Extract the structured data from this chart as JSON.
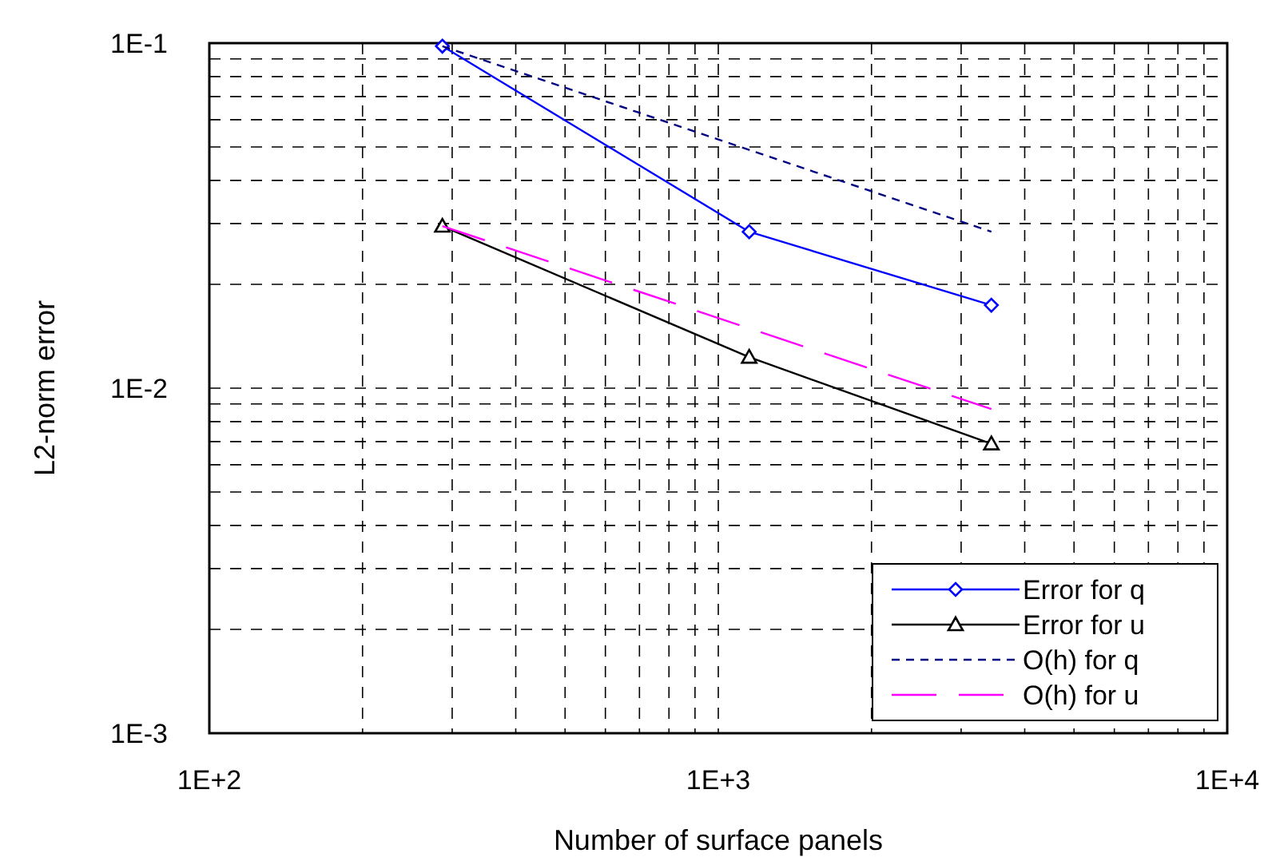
{
  "chart_data": {
    "type": "line",
    "xlabel": "Number of surface panels",
    "ylabel": "L2-norm error",
    "log": "xy",
    "grid": true,
    "legend": "bottom right",
    "xlim": [
      100,
      10000
    ],
    "ylim": [
      0.001,
      0.1
    ],
    "xticks": [
      {
        "value": 100,
        "label": "1E+2"
      },
      {
        "value": 200,
        "label": null
      },
      {
        "value": 300,
        "label": null
      },
      {
        "value": 400,
        "label": null
      },
      {
        "value": 500,
        "label": null
      },
      {
        "value": 600,
        "label": null
      },
      {
        "value": 700,
        "label": null
      },
      {
        "value": 800,
        "label": null
      },
      {
        "value": 900,
        "label": null
      },
      {
        "value": 1000,
        "label": "1E+3"
      },
      {
        "value": 2000,
        "label": null
      },
      {
        "value": 3000,
        "label": null
      },
      {
        "value": 4000,
        "label": null
      },
      {
        "value": 5000,
        "label": null
      },
      {
        "value": 6000,
        "label": null
      },
      {
        "value": 7000,
        "label": null
      },
      {
        "value": 8000,
        "label": null
      },
      {
        "value": 9000,
        "label": null
      },
      {
        "value": 10000,
        "label": "1E+4"
      }
    ],
    "yticks": [
      {
        "value": 0.001,
        "label": "1E-3"
      },
      {
        "value": 0.002,
        "label": null
      },
      {
        "value": 0.003,
        "label": null
      },
      {
        "value": 0.004,
        "label": null
      },
      {
        "value": 0.005,
        "label": null
      },
      {
        "value": 0.006,
        "label": null
      },
      {
        "value": 0.007,
        "label": null
      },
      {
        "value": 0.008,
        "label": null
      },
      {
        "value": 0.009,
        "label": null
      },
      {
        "value": 0.01,
        "label": "1E-2"
      },
      {
        "value": 0.02,
        "label": null
      },
      {
        "value": 0.03,
        "label": null
      },
      {
        "value": 0.04,
        "label": null
      },
      {
        "value": 0.05,
        "label": null
      },
      {
        "value": 0.06,
        "label": null
      },
      {
        "value": 0.07,
        "label": null
      },
      {
        "value": 0.08,
        "label": null
      },
      {
        "value": 0.09,
        "label": null
      },
      {
        "value": 0.1,
        "label": "1E-1"
      }
    ],
    "series": [
      {
        "name": "Error for q",
        "color": "#0000ff",
        "marker": "diamond",
        "line_style": "solid",
        "x": [
          287,
          1150,
          3440
        ],
        "values": [
          0.098,
          0.0284,
          0.0174
        ]
      },
      {
        "name": "Error for u",
        "color": "#000000",
        "marker": "triangle",
        "line_style": "solid",
        "x": [
          287,
          1150,
          3440
        ],
        "values": [
          0.0295,
          0.0123,
          0.0069
        ]
      },
      {
        "name": "O(h) for q",
        "color": "#000080",
        "marker": "none",
        "line_style": "dashed",
        "x": [
          287,
          3440
        ],
        "values": [
          0.098,
          0.0284
        ]
      },
      {
        "name": "O(h) for u",
        "color": "#ff00ff",
        "marker": "none",
        "line_style": "longdash",
        "x": [
          287,
          3440
        ],
        "values": [
          0.0295,
          0.0087
        ]
      }
    ]
  }
}
